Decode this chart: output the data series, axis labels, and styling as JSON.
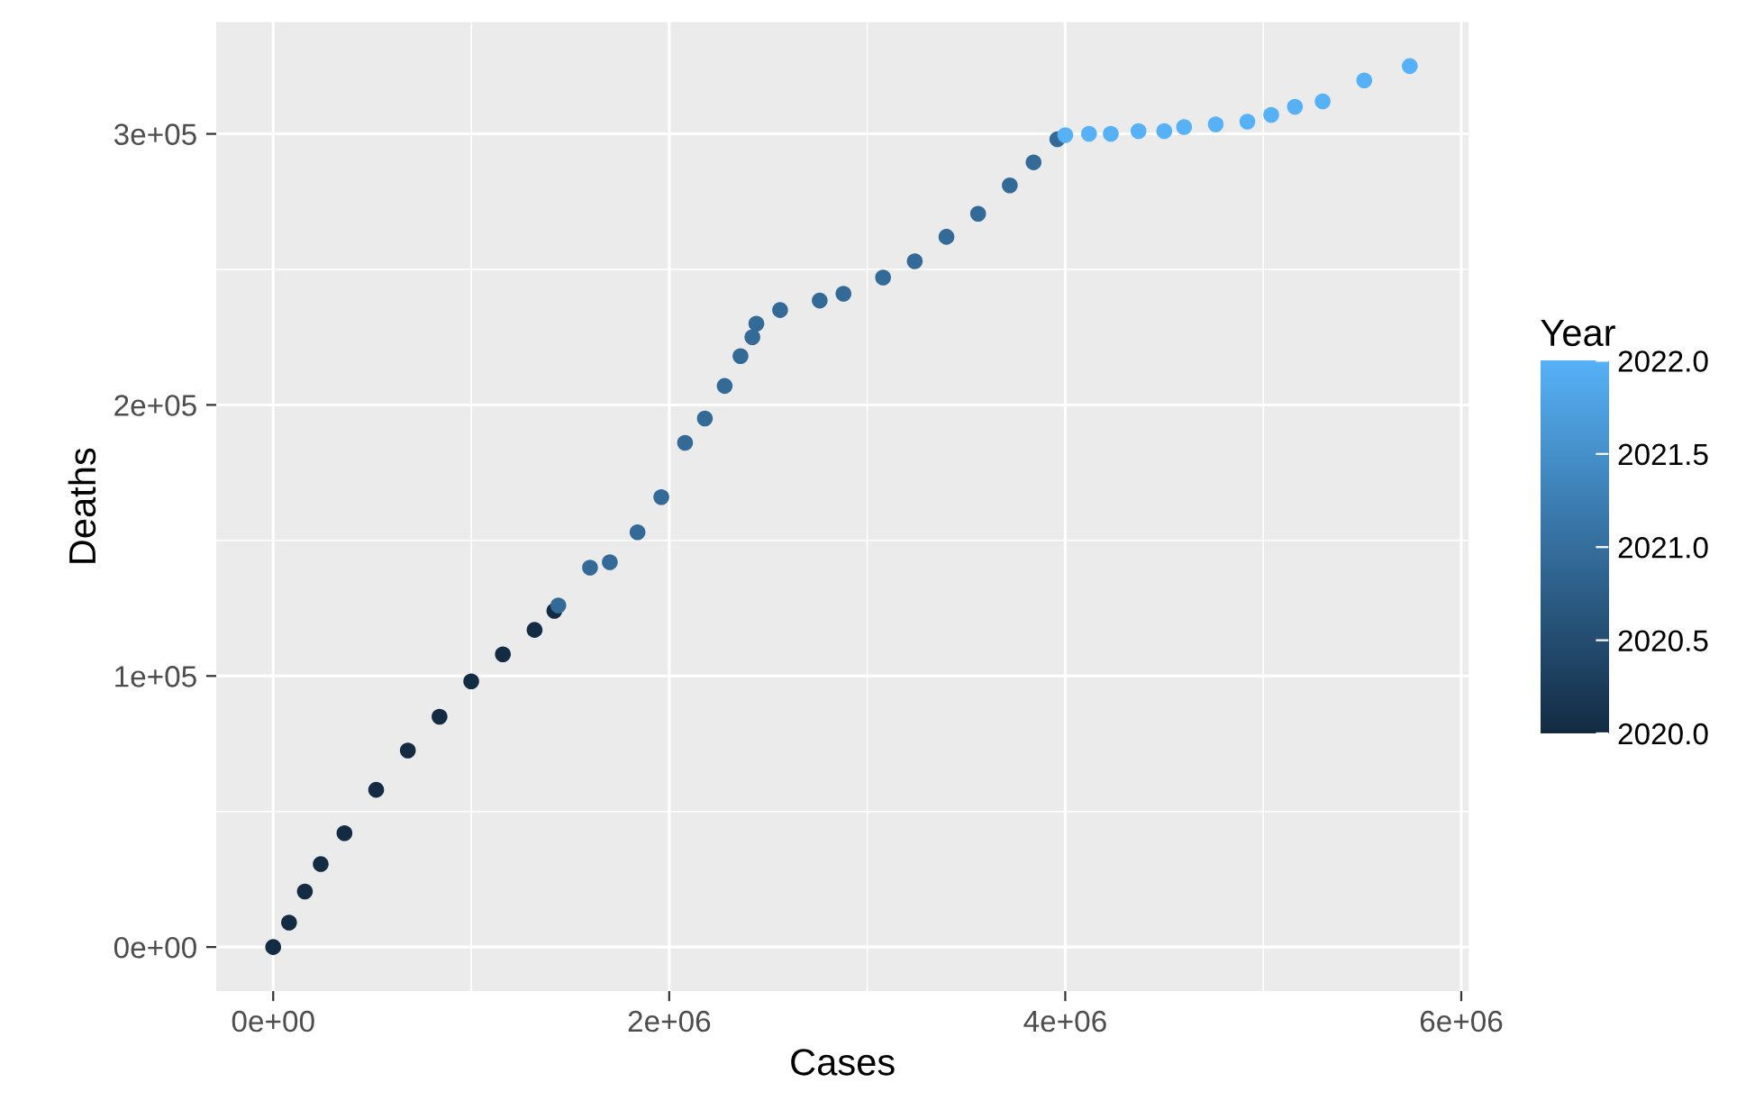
{
  "chart_data": {
    "type": "scatter",
    "xlabel": "Cases",
    "ylabel": "Deaths",
    "clabel": "Year",
    "x": [
      0,
      80000,
      160000,
      240000,
      360000,
      520000,
      680000,
      840000,
      1000000,
      1160000,
      1320000,
      1420000,
      1440000,
      1600000,
      1700000,
      1840000,
      1960000,
      2080000,
      2180000,
      2280000,
      2360000,
      2420000,
      2440000,
      2560000,
      2760000,
      2880000,
      3080000,
      3240000,
      3400000,
      3560000,
      3720000,
      3840000,
      3960000,
      4000000,
      4120000,
      4230000,
      4370000,
      4500000,
      4600000,
      4760000,
      4920000,
      5040000,
      5160000,
      5300000,
      5510000,
      5740000
    ],
    "values": [
      0,
      9000,
      20500,
      30600,
      42000,
      58000,
      72500,
      85000,
      98000,
      108000,
      117000,
      124000,
      126000,
      140000,
      142000,
      153000,
      166000,
      186000,
      195000,
      207000,
      218000,
      225000,
      230000,
      235000,
      238500,
      241000,
      247000,
      253000,
      262000,
      270500,
      281000,
      289500,
      298000,
      299500,
      300000,
      300000,
      301000,
      301000,
      302500,
      303500,
      304500,
      307000,
      310000,
      312000,
      319700,
      325000
    ],
    "colors": [
      "#132b43",
      "#132b43",
      "#132b43",
      "#132b43",
      "#132b43",
      "#132b43",
      "#132b43",
      "#132b43",
      "#132b43",
      "#132b43",
      "#132b43",
      "#132b43",
      "#336a98",
      "#336a98",
      "#336a98",
      "#336a98",
      "#336a98",
      "#336a98",
      "#336a98",
      "#336a98",
      "#336a98",
      "#336a98",
      "#336a98",
      "#336a98",
      "#336a98",
      "#336a98",
      "#336a98",
      "#336a98",
      "#336a98",
      "#336a98",
      "#336a98",
      "#336a98",
      "#336a98",
      "#56b1f7",
      "#56b1f7",
      "#56b1f7",
      "#56b1f7",
      "#56b1f7",
      "#56b1f7",
      "#56b1f7",
      "#56b1f7",
      "#56b1f7",
      "#56b1f7",
      "#56b1f7",
      "#56b1f7",
      "#56b1f7"
    ],
    "clim": [
      2020,
      2022
    ],
    "cticks": [
      {
        "value": 2020,
        "label": "2020.0"
      },
      {
        "value": 2020.5,
        "label": "2020.5"
      },
      {
        "value": 2021,
        "label": "2021.0"
      },
      {
        "value": 2021.5,
        "label": "2021.5"
      },
      {
        "value": 2022,
        "label": "2022.0"
      }
    ],
    "xlim": [
      -287500,
      6037500
    ],
    "ylim": [
      -16250,
      341250
    ],
    "xticks": [
      {
        "value": 0,
        "label": "0e+00"
      },
      {
        "value": 2000000,
        "label": "2e+06"
      },
      {
        "value": 4000000,
        "label": "4e+06"
      },
      {
        "value": 6000000,
        "label": "6e+06"
      }
    ],
    "yticks": [
      {
        "value": 0,
        "label": "0e+00"
      },
      {
        "value": 100000,
        "label": "1e+05"
      },
      {
        "value": 200000,
        "label": "2e+05"
      },
      {
        "value": 300000,
        "label": "3e+05"
      }
    ],
    "grid": true,
    "marker": "circle"
  }
}
